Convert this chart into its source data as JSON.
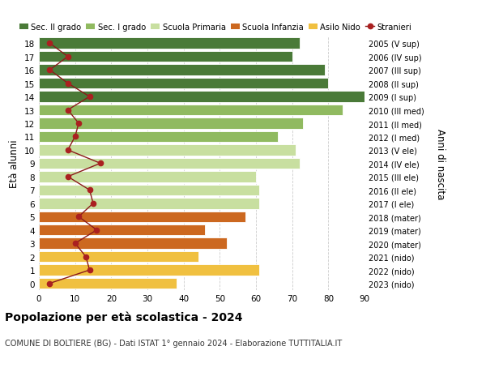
{
  "ages": [
    0,
    1,
    2,
    3,
    4,
    5,
    6,
    7,
    8,
    9,
    10,
    11,
    12,
    13,
    14,
    15,
    16,
    17,
    18
  ],
  "bar_values": [
    38,
    61,
    44,
    52,
    46,
    57,
    61,
    61,
    60,
    72,
    71,
    66,
    73,
    84,
    90,
    80,
    79,
    70,
    72
  ],
  "stranieri": [
    3,
    14,
    13,
    10,
    16,
    11,
    15,
    14,
    8,
    17,
    8,
    10,
    11,
    8,
    14,
    8,
    3,
    8,
    3
  ],
  "right_labels": [
    "2023 (nido)",
    "2022 (nido)",
    "2021 (nido)",
    "2020 (mater)",
    "2019 (mater)",
    "2018 (mater)",
    "2017 (I ele)",
    "2016 (II ele)",
    "2015 (III ele)",
    "2014 (IV ele)",
    "2013 (V ele)",
    "2012 (I med)",
    "2011 (II med)",
    "2010 (III med)",
    "2009 (I sup)",
    "2008 (II sup)",
    "2007 (III sup)",
    "2006 (IV sup)",
    "2005 (V sup)"
  ],
  "bar_colors": [
    "#f0c040",
    "#f0c040",
    "#f0c040",
    "#cc6820",
    "#cc6820",
    "#cc6820",
    "#c8dfa0",
    "#c8dfa0",
    "#c8dfa0",
    "#c8dfa0",
    "#c8dfa0",
    "#90ba60",
    "#90ba60",
    "#90ba60",
    "#4a7a38",
    "#4a7a38",
    "#4a7a38",
    "#4a7a38",
    "#4a7a38"
  ],
  "legend_labels": [
    "Sec. II grado",
    "Sec. I grado",
    "Scuola Primaria",
    "Scuola Infanzia",
    "Asilo Nido",
    "Stranieri"
  ],
  "legend_colors": [
    "#4a7a38",
    "#90ba60",
    "#c8dfa0",
    "#cc6820",
    "#f0c040",
    "#8b1a1a"
  ],
  "stranieri_line_color": "#8b1a1a",
  "stranieri_dot_color": "#aa2020",
  "ylabel_left": "Età alunni",
  "ylabel_right": "Anni di nascita",
  "title": "Popolazione per età scolastica - 2024",
  "subtitle": "COMUNE DI BOLTIERE (BG) - Dati ISTAT 1° gennaio 2024 - Elaborazione TUTTITALIA.IT",
  "xlim": [
    0,
    90
  ],
  "xticks": [
    0,
    10,
    20,
    30,
    40,
    50,
    60,
    70,
    80,
    90
  ],
  "grid_color": "#cccccc"
}
